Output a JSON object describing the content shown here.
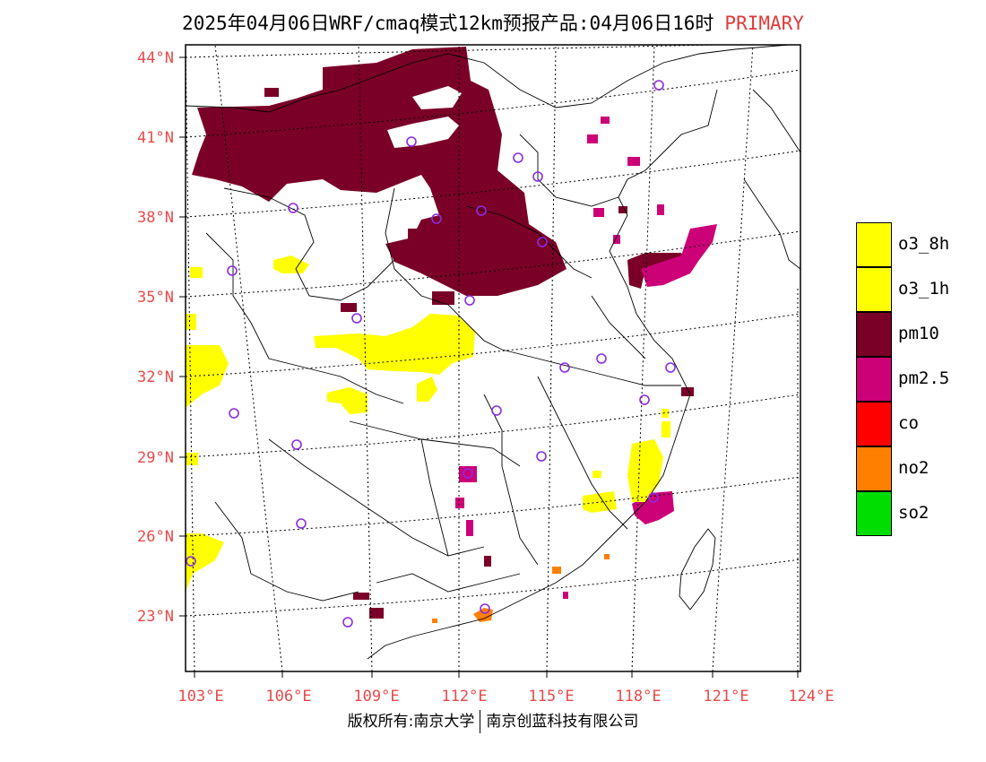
{
  "header": {
    "title": "2025年04月06日WRF/cmaq模式12km预报产品:04月06日16时",
    "tag": "PRIMARY"
  },
  "axes": {
    "lat_labels": [
      "44°N",
      "41°N",
      "38°N",
      "35°N",
      "32°N",
      "29°N",
      "26°N",
      "23°N"
    ],
    "lon_labels": [
      "103°E",
      "106°E",
      "109°E",
      "112°E",
      "115°E",
      "118°E",
      "121°E",
      "124°E"
    ]
  },
  "legend": {
    "items": [
      {
        "label": "o3_8h",
        "color": "#ffff00"
      },
      {
        "label": "o3_1h",
        "color": "#ffff00"
      },
      {
        "label": "pm10",
        "color": "#7a0028"
      },
      {
        "label": "pm2.5",
        "color": "#cc0077"
      },
      {
        "label": "co",
        "color": "#ff0000"
      },
      {
        "label": "no2",
        "color": "#ff7f00"
      },
      {
        "label": "so2",
        "color": "#00dd00"
      }
    ]
  },
  "footer": {
    "left": "版权所有:南京大学",
    "right": "南京创蓝科技有限公司"
  }
}
